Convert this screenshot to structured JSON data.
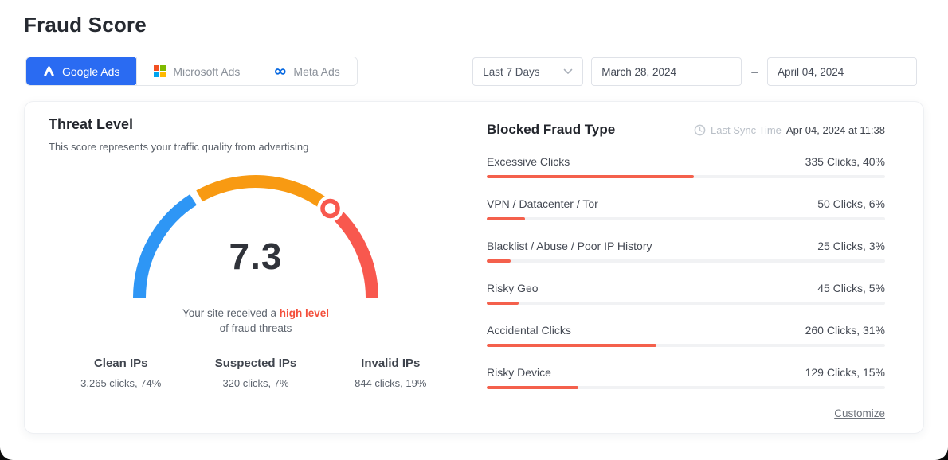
{
  "page": {
    "title": "Fraud Score"
  },
  "tabs": [
    {
      "label": "Google Ads",
      "active": true
    },
    {
      "label": "Microsoft Ads",
      "active": false
    },
    {
      "label": "Meta Ads",
      "active": false
    }
  ],
  "filters": {
    "range_label": "Last 7 Days",
    "start_date": "March 28, 2024",
    "separator": "–",
    "end_date": "April 04, 2024"
  },
  "threat_level": {
    "title": "Threat Level",
    "subtitle": "This score represents your traffic quality from advertising",
    "score": "7.3",
    "score_max": 10,
    "caption_prefix": "Your site received a ",
    "caption_highlight": "high level",
    "caption_line2": "of fraud threats",
    "stats": [
      {
        "label": "Clean IPs",
        "value": "3,265 clicks, 74%"
      },
      {
        "label": "Suspected IPs",
        "value": "320 clicks, 7%"
      },
      {
        "label": "Invalid IPs",
        "value": "844 clicks, 19%"
      }
    ]
  },
  "blocked_fraud": {
    "title": "Blocked Fraud Type",
    "last_sync_label": "Last Sync Time",
    "last_sync_value": "Apr 04, 2024 at 11:38",
    "rows": [
      {
        "label": "Excessive Clicks",
        "value": "335 Clicks, 40%",
        "bar_pct": 52
      },
      {
        "label": "VPN / Datacenter / Tor",
        "value": "50 Clicks, 6%",
        "bar_pct": 9.5
      },
      {
        "label": "Blacklist / Abuse / Poor IP History",
        "value": "25 Clicks, 3%",
        "bar_pct": 6
      },
      {
        "label": "Risky Geo",
        "value": "45 Clicks, 5%",
        "bar_pct": 8
      },
      {
        "label": "Accidental Clicks",
        "value": "260 Clicks, 31%",
        "bar_pct": 42.5
      },
      {
        "label": "Risky Device",
        "value": "129 Clicks, 15%",
        "bar_pct": 23
      }
    ],
    "customize_label": "Customize"
  },
  "chart_data": [
    {
      "type": "gauge",
      "title": "Threat Level",
      "value": 7.3,
      "range": [
        0,
        10
      ],
      "segments": [
        {
          "name": "low",
          "from": 0,
          "to": 3.3,
          "color": "#2e96f5"
        },
        {
          "name": "medium",
          "from": 3.3,
          "to": 7.3,
          "color": "#f89a12"
        },
        {
          "name": "high",
          "from": 7.3,
          "to": 10,
          "color": "#f8584e"
        }
      ]
    },
    {
      "type": "bar",
      "title": "Blocked Fraud Type",
      "categories": [
        "Excessive Clicks",
        "VPN / Datacenter / Tor",
        "Blacklist / Abuse / Poor IP History",
        "Risky Geo",
        "Accidental Clicks",
        "Risky Device"
      ],
      "values": [
        335,
        50,
        25,
        45,
        260,
        129
      ],
      "percentages": [
        40,
        6,
        3,
        5,
        31,
        15
      ],
      "orientation": "horizontal",
      "bar_color": "#f4604c"
    }
  ],
  "colors": {
    "accent_blue": "#2a6bf2",
    "gauge_blue": "#2e96f5",
    "gauge_orange": "#f89a12",
    "gauge_red": "#f8584e",
    "bar_red": "#f4604c",
    "highlight_red": "#f4503c"
  }
}
